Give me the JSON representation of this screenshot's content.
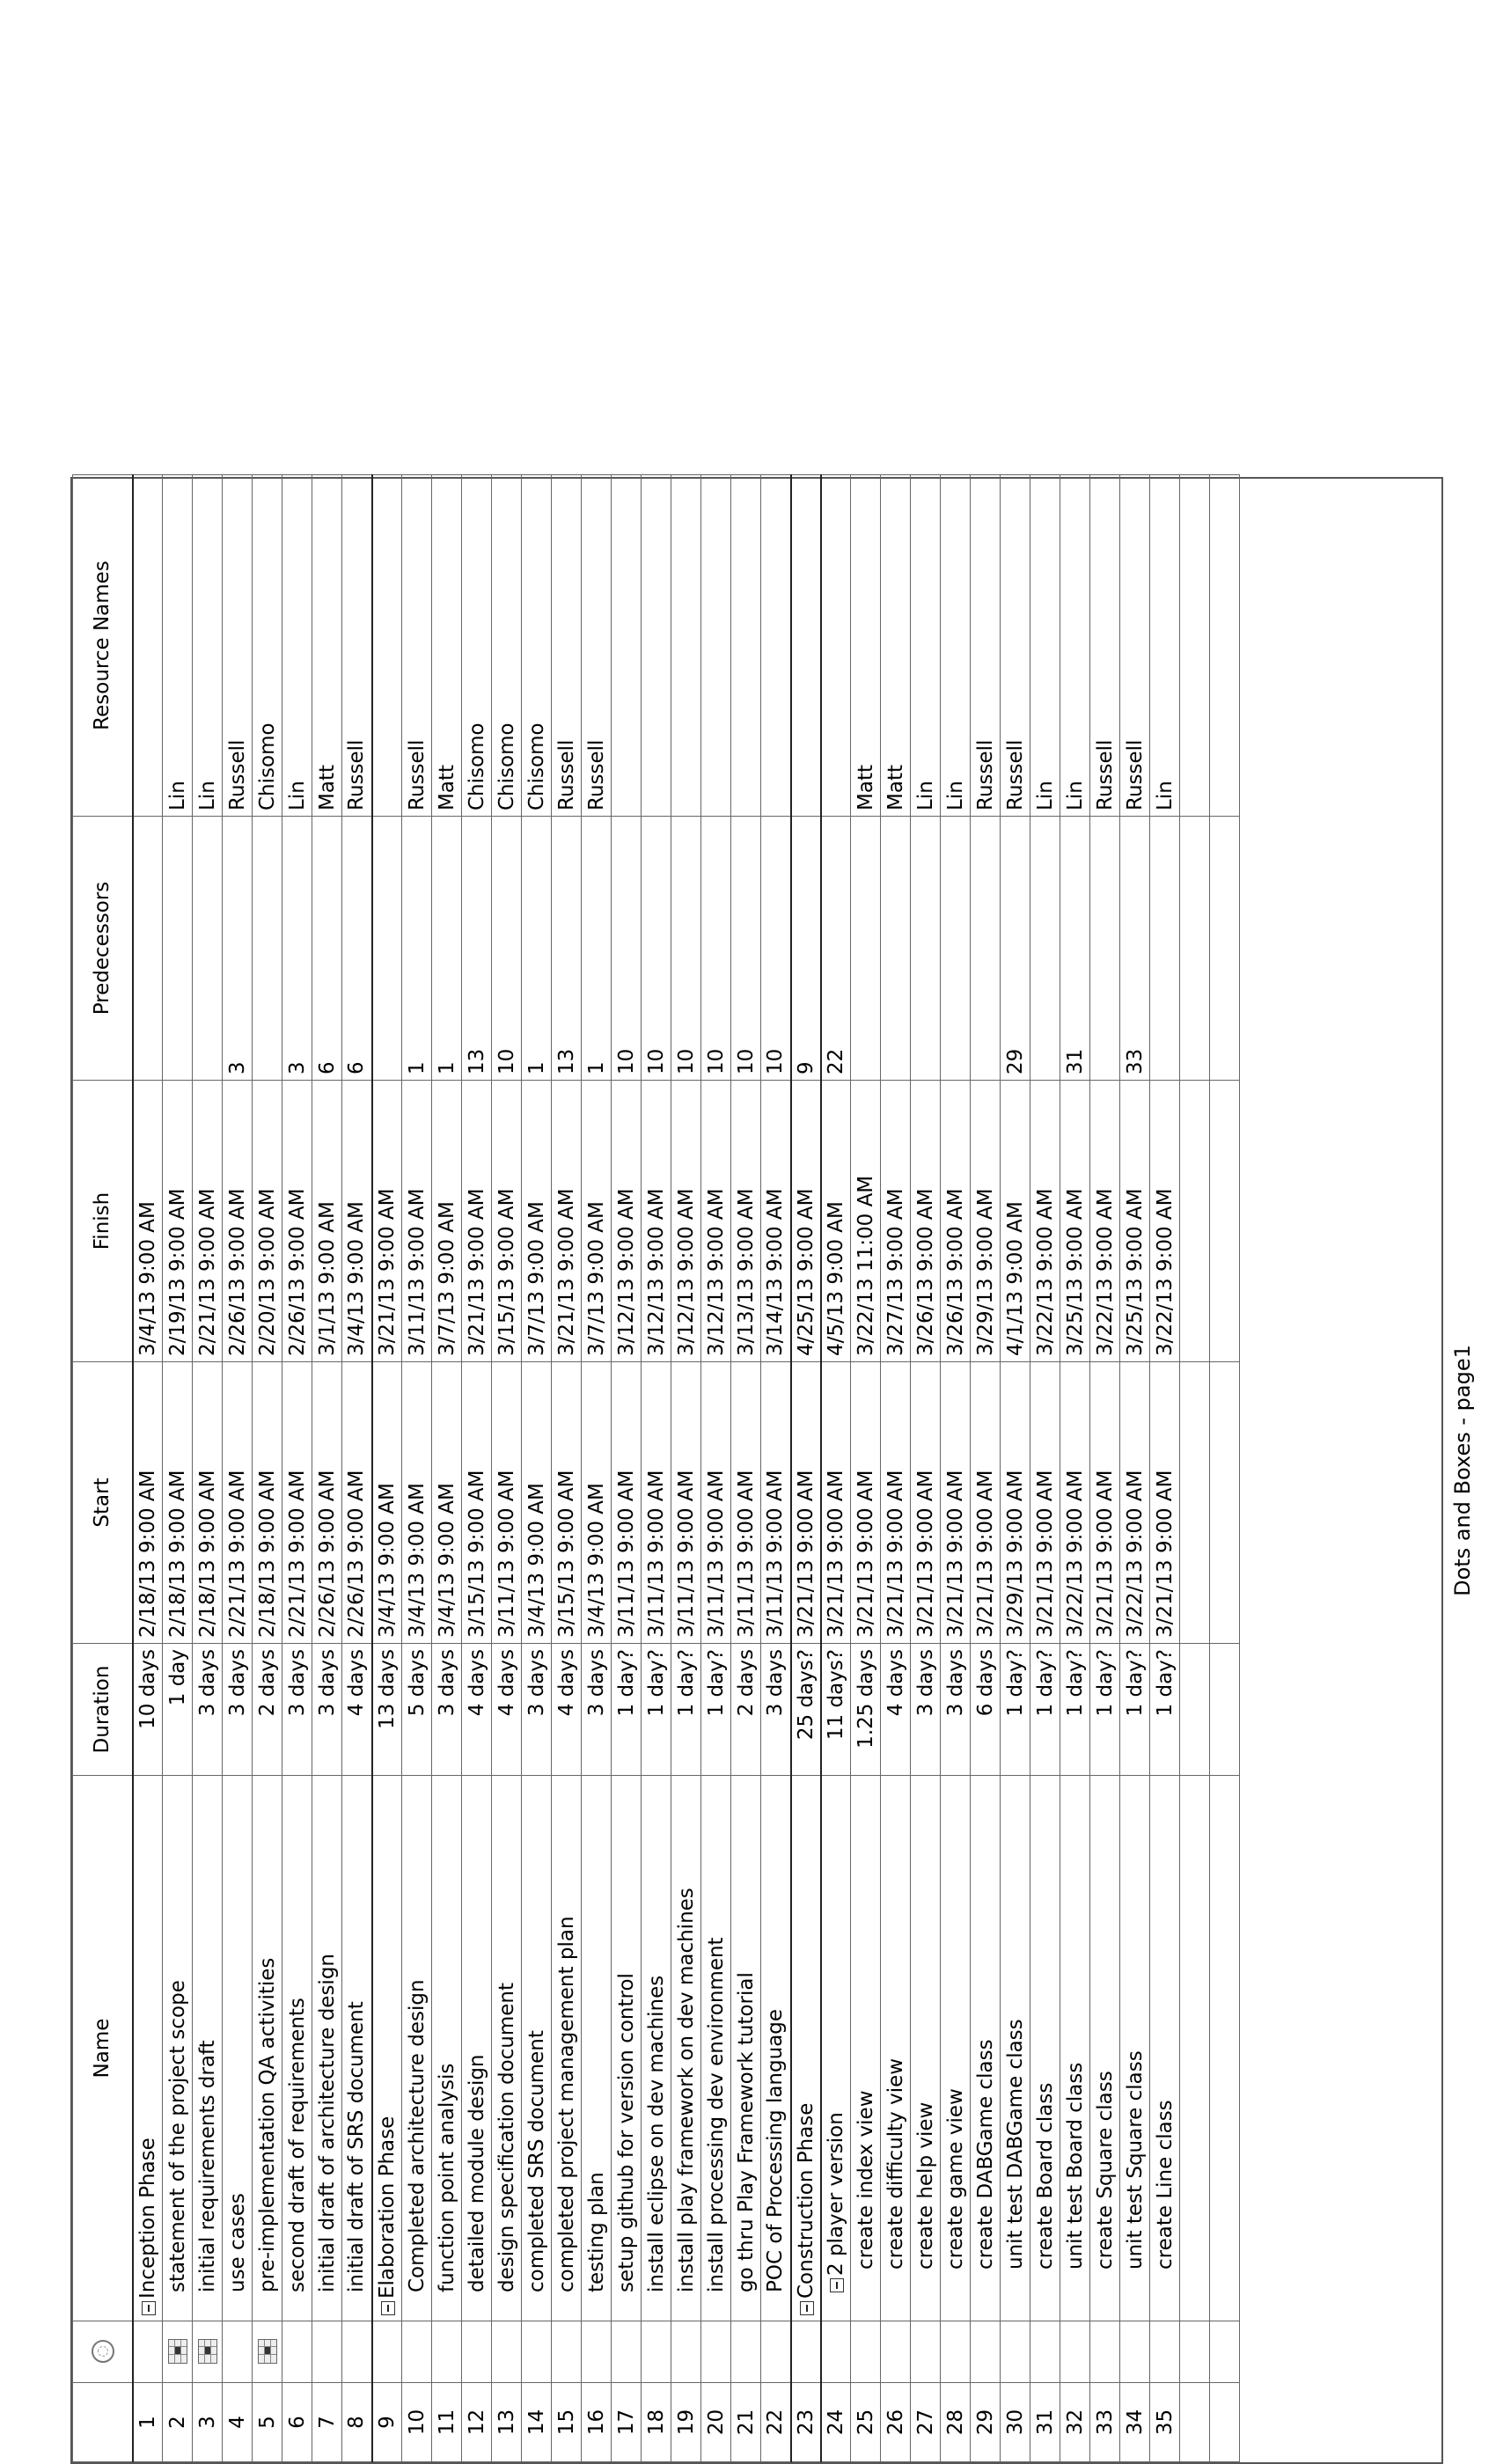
{
  "columns": {
    "id": "",
    "indicators_icon": "info-icon",
    "name": "Name",
    "duration": "Duration",
    "start": "Start",
    "finish": "Finish",
    "predecessors": "Predecessors",
    "resources": "Resource Names"
  },
  "tasks": [
    {
      "id": "1",
      "name": "Inception Phase",
      "duration": "10 days",
      "start": "2/18/13 9:00 AM",
      "finish": "3/4/13 9:00 AM",
      "pred": "",
      "res": "",
      "level": 0,
      "summary": true,
      "indicator": false
    },
    {
      "id": "2",
      "name": "statement of the project scope",
      "duration": "1 day",
      "start": "2/18/13 9:00 AM",
      "finish": "2/19/13 9:00 AM",
      "pred": "",
      "res": "Lin",
      "level": 1,
      "summary": false,
      "indicator": true
    },
    {
      "id": "3",
      "name": "initial requirements draft",
      "duration": "3 days",
      "start": "2/18/13 9:00 AM",
      "finish": "2/21/13 9:00 AM",
      "pred": "",
      "res": "Lin",
      "level": 1,
      "summary": false,
      "indicator": true
    },
    {
      "id": "4",
      "name": "use cases",
      "duration": "3 days",
      "start": "2/21/13 9:00 AM",
      "finish": "2/26/13 9:00 AM",
      "pred": "3",
      "res": "Russell",
      "level": 1,
      "summary": false,
      "indicator": false
    },
    {
      "id": "5",
      "name": "pre-implementation QA activities",
      "duration": "2 days",
      "start": "2/18/13 9:00 AM",
      "finish": "2/20/13 9:00 AM",
      "pred": "",
      "res": "Chisomo",
      "level": 1,
      "summary": false,
      "indicator": true
    },
    {
      "id": "6",
      "name": "second draft of requirements",
      "duration": "3 days",
      "start": "2/21/13 9:00 AM",
      "finish": "2/26/13 9:00 AM",
      "pred": "3",
      "res": "Lin",
      "level": 1,
      "summary": false,
      "indicator": false
    },
    {
      "id": "7",
      "name": "initial draft of architecture design",
      "duration": "3 days",
      "start": "2/26/13 9:00 AM",
      "finish": "3/1/13 9:00 AM",
      "pred": "6",
      "res": "Matt",
      "level": 1,
      "summary": false,
      "indicator": false
    },
    {
      "id": "8",
      "name": "initial draft of SRS document",
      "duration": "4 days",
      "start": "2/26/13 9:00 AM",
      "finish": "3/4/13 9:00 AM",
      "pred": "6",
      "res": "Russell",
      "level": 1,
      "summary": false,
      "indicator": false
    },
    {
      "id": "9",
      "name": "Elaboration Phase",
      "duration": "13 days",
      "start": "3/4/13 9:00 AM",
      "finish": "3/21/13 9:00 AM",
      "pred": "",
      "res": "",
      "level": 0,
      "summary": true,
      "indicator": false
    },
    {
      "id": "10",
      "name": "Completed architecture design",
      "duration": "5 days",
      "start": "3/4/13 9:00 AM",
      "finish": "3/11/13 9:00 AM",
      "pred": "1",
      "res": "Russell",
      "level": 1,
      "summary": false,
      "indicator": false
    },
    {
      "id": "11",
      "name": "function point analysis",
      "duration": "3 days",
      "start": "3/4/13 9:00 AM",
      "finish": "3/7/13 9:00 AM",
      "pred": "1",
      "res": "Matt",
      "level": 1,
      "summary": false,
      "indicator": false
    },
    {
      "id": "12",
      "name": "detailed module design",
      "duration": "4 days",
      "start": "3/15/13 9:00 AM",
      "finish": "3/21/13 9:00 AM",
      "pred": "13",
      "res": "Chisomo",
      "level": 1,
      "summary": false,
      "indicator": false
    },
    {
      "id": "13",
      "name": "design specification document",
      "duration": "4 days",
      "start": "3/11/13 9:00 AM",
      "finish": "3/15/13 9:00 AM",
      "pred": "10",
      "res": "Chisomo",
      "level": 1,
      "summary": false,
      "indicator": false
    },
    {
      "id": "14",
      "name": "completed SRS document",
      "duration": "3 days",
      "start": "3/4/13 9:00 AM",
      "finish": "3/7/13 9:00 AM",
      "pred": "1",
      "res": "Chisomo",
      "level": 1,
      "summary": false,
      "indicator": false
    },
    {
      "id": "15",
      "name": "completed project management plan",
      "duration": "4 days",
      "start": "3/15/13 9:00 AM",
      "finish": "3/21/13 9:00 AM",
      "pred": "13",
      "res": "Russell",
      "level": 1,
      "summary": false,
      "indicator": false
    },
    {
      "id": "16",
      "name": "testing plan",
      "duration": "3 days",
      "start": "3/4/13 9:00 AM",
      "finish": "3/7/13 9:00 AM",
      "pred": "1",
      "res": "Russell",
      "level": 1,
      "summary": false,
      "indicator": false
    },
    {
      "id": "17",
      "name": "setup github for version control",
      "duration": "1 day?",
      "start": "3/11/13 9:00 AM",
      "finish": "3/12/13 9:00 AM",
      "pred": "10",
      "res": "",
      "level": 1,
      "summary": false,
      "indicator": false
    },
    {
      "id": "18",
      "name": "install eclipse on dev machines",
      "duration": "1 day?",
      "start": "3/11/13 9:00 AM",
      "finish": "3/12/13 9:00 AM",
      "pred": "10",
      "res": "",
      "level": 1,
      "summary": false,
      "indicator": false
    },
    {
      "id": "19",
      "name": "install play framework on dev machines",
      "duration": "1 day?",
      "start": "3/11/13 9:00 AM",
      "finish": "3/12/13 9:00 AM",
      "pred": "10",
      "res": "",
      "level": 1,
      "summary": false,
      "indicator": false
    },
    {
      "id": "20",
      "name": "install processing dev environment",
      "duration": "1 day?",
      "start": "3/11/13 9:00 AM",
      "finish": "3/12/13 9:00 AM",
      "pred": "10",
      "res": "",
      "level": 1,
      "summary": false,
      "indicator": false
    },
    {
      "id": "21",
      "name": "go thru Play Framework tutorial",
      "duration": "2 days",
      "start": "3/11/13 9:00 AM",
      "finish": "3/13/13 9:00 AM",
      "pred": "10",
      "res": "",
      "level": 1,
      "summary": false,
      "indicator": false
    },
    {
      "id": "22",
      "name": "POC of Processing language",
      "duration": "3 days",
      "start": "3/11/13 9:00 AM",
      "finish": "3/14/13 9:00 AM",
      "pred": "10",
      "res": "",
      "level": 1,
      "summary": false,
      "indicator": false
    },
    {
      "id": "23",
      "name": "Construction Phase",
      "duration": "25 days?",
      "start": "3/21/13 9:00 AM",
      "finish": "4/25/13 9:00 AM",
      "pred": "9",
      "res": "",
      "level": 0,
      "summary": true,
      "indicator": false
    },
    {
      "id": "24",
      "name": "2 player version",
      "duration": "11 days?",
      "start": "3/21/13 9:00 AM",
      "finish": "4/5/13 9:00 AM",
      "pred": "22",
      "res": "",
      "level": 1,
      "summary": true,
      "indicator": false
    },
    {
      "id": "25",
      "name": "create index view",
      "duration": "1.25 days",
      "start": "3/21/13 9:00 AM",
      "finish": "3/22/13 11:00 AM",
      "pred": "",
      "res": "Matt",
      "level": 2,
      "summary": false,
      "indicator": false
    },
    {
      "id": "26",
      "name": "create difficulty view",
      "duration": "4 days",
      "start": "3/21/13 9:00 AM",
      "finish": "3/27/13 9:00 AM",
      "pred": "",
      "res": "Matt",
      "level": 2,
      "summary": false,
      "indicator": false
    },
    {
      "id": "27",
      "name": "create help view",
      "duration": "3 days",
      "start": "3/21/13 9:00 AM",
      "finish": "3/26/13 9:00 AM",
      "pred": "",
      "res": "Lin",
      "level": 2,
      "summary": false,
      "indicator": false
    },
    {
      "id": "28",
      "name": "create game view",
      "duration": "3 days",
      "start": "3/21/13 9:00 AM",
      "finish": "3/26/13 9:00 AM",
      "pred": "",
      "res": "Lin",
      "level": 2,
      "summary": false,
      "indicator": false
    },
    {
      "id": "29",
      "name": "create DABGame class",
      "duration": "6 days",
      "start": "3/21/13 9:00 AM",
      "finish": "3/29/13 9:00 AM",
      "pred": "",
      "res": "Russell",
      "level": 2,
      "summary": false,
      "indicator": false
    },
    {
      "id": "30",
      "name": "unit test DABGame class",
      "duration": "1 day?",
      "start": "3/29/13 9:00 AM",
      "finish": "4/1/13 9:00 AM",
      "pred": "29",
      "res": "Russell",
      "level": 2,
      "summary": false,
      "indicator": false
    },
    {
      "id": "31",
      "name": "create Board class",
      "duration": "1 day?",
      "start": "3/21/13 9:00 AM",
      "finish": "3/22/13 9:00 AM",
      "pred": "",
      "res": "Lin",
      "level": 2,
      "summary": false,
      "indicator": false
    },
    {
      "id": "32",
      "name": "unit test Board class",
      "duration": "1 day?",
      "start": "3/22/13 9:00 AM",
      "finish": "3/25/13 9:00 AM",
      "pred": "31",
      "res": "Lin",
      "level": 2,
      "summary": false,
      "indicator": false
    },
    {
      "id": "33",
      "name": "create Square class",
      "duration": "1 day?",
      "start": "3/21/13 9:00 AM",
      "finish": "3/22/13 9:00 AM",
      "pred": "",
      "res": "Russell",
      "level": 2,
      "summary": false,
      "indicator": false
    },
    {
      "id": "34",
      "name": "unit test Square class",
      "duration": "1 day?",
      "start": "3/22/13 9:00 AM",
      "finish": "3/25/13 9:00 AM",
      "pred": "33",
      "res": "Russell",
      "level": 2,
      "summary": false,
      "indicator": false
    },
    {
      "id": "35",
      "name": "create Line class",
      "duration": "1 day?",
      "start": "3/21/13 9:00 AM",
      "finish": "3/22/13 9:00 AM",
      "pred": "",
      "res": "Lin",
      "level": 2,
      "summary": false,
      "indicator": false
    }
  ],
  "blank_rows": 2,
  "footer": "Dots and Boxes - page1"
}
